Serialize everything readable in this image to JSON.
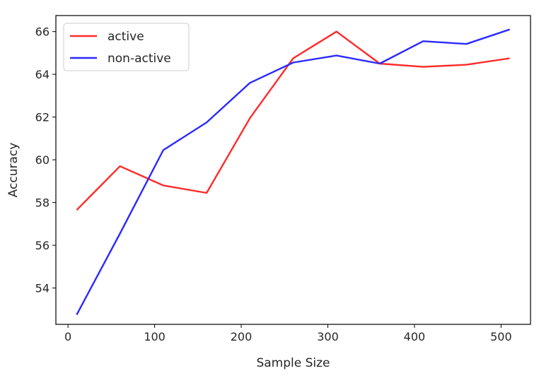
{
  "chart_data": {
    "type": "line",
    "title": "",
    "xlabel": "Sample Size",
    "ylabel": "Accuracy",
    "x": [
      10,
      60,
      110,
      160,
      210,
      260,
      310,
      360,
      410,
      460,
      510
    ],
    "xlim": [
      -14,
      534
    ],
    "ylim": [
      52.3,
      66.75
    ],
    "xticks": [
      0,
      100,
      200,
      300,
      400,
      500
    ],
    "yticks": [
      54,
      56,
      58,
      60,
      62,
      64,
      66
    ],
    "grid": false,
    "legend_position": "top-left",
    "series": [
      {
        "name": "active",
        "color": "#ff2a2a",
        "values": [
          57.65,
          59.7,
          58.8,
          58.45,
          61.95,
          64.75,
          66.0,
          64.5,
          64.35,
          64.45,
          64.75
        ]
      },
      {
        "name": "non-active",
        "color": "#2a2aff",
        "values": [
          52.75,
          56.55,
          60.45,
          61.75,
          63.6,
          64.55,
          64.88,
          64.5,
          65.55,
          65.42,
          66.1
        ]
      }
    ]
  }
}
